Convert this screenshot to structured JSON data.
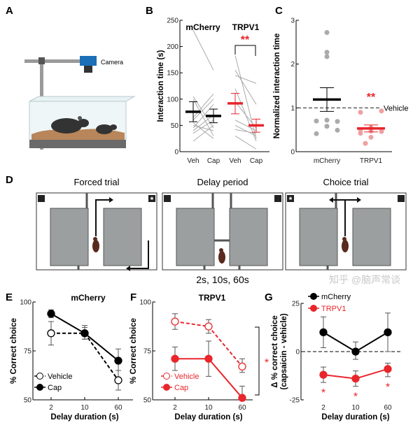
{
  "panels": {
    "A": "A",
    "B": "B",
    "C": "C",
    "D": "D",
    "E": "E",
    "F": "F",
    "G": "G"
  },
  "panel_a": {
    "camera_label": "Camera"
  },
  "panel_d": {
    "titles": [
      "Forced trial",
      "Delay period",
      "Choice trial"
    ],
    "delay_label": "2s, 10s, 60s",
    "goal_marker": "*"
  },
  "colors": {
    "mcherry": "#000000",
    "trpv1": "#e8262b",
    "individual": "#aaaaaa",
    "trpv1_light": "#f0a0a2"
  },
  "watermark": "知乎 @脑声常谈",
  "chart_data": [
    {
      "id": "B",
      "type": "line",
      "group_titles": [
        "mCherry",
        "TRPV1"
      ],
      "categories": [
        "Veh",
        "Cap",
        "Veh",
        "Cap"
      ],
      "ylabel": "Interaction time (s)",
      "ylim": [
        0,
        250
      ],
      "yticks": [
        0,
        50,
        100,
        150,
        200,
        250
      ],
      "significance": "**",
      "groups": [
        {
          "name": "mCherry",
          "mean": [
            76,
            68
          ],
          "err_low": [
            57,
            55
          ],
          "err_high": [
            95,
            81
          ],
          "individual": [
            [
              231,
              155
            ],
            [
              105,
              45
            ],
            [
              100,
              30
            ],
            [
              65,
              110
            ],
            [
              60,
              100
            ],
            [
              45,
              90
            ],
            [
              40,
              70
            ],
            [
              35,
              60
            ],
            [
              20,
              50
            ],
            [
              55,
              25
            ],
            [
              50,
              40
            ]
          ]
        },
        {
          "name": "TRPV1",
          "mean": [
            92,
            50
          ],
          "err_low": [
            72,
            37
          ],
          "err_high": [
            111,
            62
          ],
          "individual": [
            [
              183,
              25
            ],
            [
              155,
              90
            ],
            [
              145,
              130
            ],
            [
              120,
              20
            ],
            [
              60,
              40
            ],
            [
              50,
              30
            ],
            [
              42,
              35
            ],
            [
              30,
              5
            ],
            [
              95,
              45
            ]
          ]
        }
      ]
    },
    {
      "id": "C",
      "type": "scatter",
      "categories": [
        "mCherry",
        "TRPV1"
      ],
      "ylabel": "Normalized interaction time",
      "ylim": [
        0,
        3
      ],
      "yticks": [
        0,
        1,
        2,
        3
      ],
      "reference_line": {
        "value": 1,
        "label": "Vehicle"
      },
      "significance": "**",
      "groups": [
        {
          "name": "mCherry",
          "points": [
            2.72,
            2.27,
            2.17,
            0.7,
            0.72,
            0.69,
            0.58,
            0.49,
            0.41
          ],
          "mean": 1.19,
          "err_low": 0.92,
          "err_high": 1.46
        },
        {
          "name": "TRPV1",
          "points": [
            0.93,
            0.9,
            0.55,
            0.5,
            0.47,
            0.46,
            0.42,
            0.33,
            0.19
          ],
          "mean": 0.53,
          "err_low": 0.45,
          "err_high": 0.61
        }
      ]
    },
    {
      "id": "E",
      "type": "line",
      "title": "mCherry",
      "x": [
        "2",
        "10",
        "60"
      ],
      "xlabel": "Delay duration (s)",
      "ylabel": "% Correct choice",
      "ylim": [
        50,
        100
      ],
      "yticks": [
        50,
        75,
        100
      ],
      "series": [
        {
          "name": "Vehicle",
          "values": [
            84,
            84,
            60
          ],
          "err_low": [
            78,
            81,
            55
          ],
          "err_high": [
            90,
            87,
            65
          ],
          "style": "open-dashed"
        },
        {
          "name": "Cap",
          "values": [
            94,
            84,
            70
          ],
          "err_low": [
            92,
            81,
            65
          ],
          "err_high": [
            96,
            88,
            76
          ],
          "style": "filled-solid"
        }
      ]
    },
    {
      "id": "F",
      "type": "line",
      "title": "TRPV1",
      "x": [
        "2",
        "10",
        "60"
      ],
      "xlabel": "Delay duration (s)",
      "ylabel": "% Correct choice",
      "ylim": [
        50,
        100
      ],
      "yticks": [
        50,
        75,
        100
      ],
      "significance": "*",
      "series": [
        {
          "name": "Vehicle",
          "values": [
            90,
            87.5,
            67
          ],
          "err_low": [
            86,
            84,
            64
          ],
          "err_high": [
            94,
            91,
            71
          ],
          "style": "open-dashed"
        },
        {
          "name": "Cap",
          "values": [
            71,
            71,
            51
          ],
          "err_low": [
            65,
            62,
            50
          ],
          "err_high": [
            77,
            80,
            57
          ],
          "style": "filled-solid"
        }
      ]
    },
    {
      "id": "G",
      "type": "line",
      "x": [
        "2",
        "10",
        "60"
      ],
      "xlabel": "Delay duration (s)",
      "ylabel": "Δ % correct choice",
      "ylabel2": "(capsaicin - vehicle)",
      "ylim": [
        -25,
        25
      ],
      "yticks": [
        -25,
        0,
        25
      ],
      "reference_line": {
        "value": 0
      },
      "significance": [
        "*",
        "*",
        "*"
      ],
      "series": [
        {
          "name": "mCherry",
          "values": [
            10,
            0,
            10
          ],
          "err_low": [
            2,
            -4,
            0
          ],
          "err_high": [
            18,
            5,
            20
          ]
        },
        {
          "name": "TRPV1",
          "values": [
            -12,
            -14,
            -9
          ],
          "err_low": [
            -16,
            -18,
            -13
          ],
          "err_high": [
            -8,
            -10,
            -6
          ]
        }
      ]
    }
  ]
}
